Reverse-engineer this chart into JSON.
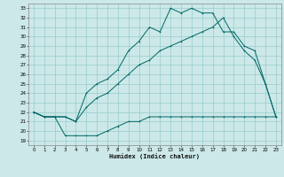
{
  "xlabel": "Humidex (Indice chaleur)",
  "xlim": [
    -0.5,
    23.5
  ],
  "ylim": [
    18.5,
    33.5
  ],
  "yticks": [
    19,
    20,
    21,
    22,
    23,
    24,
    25,
    26,
    27,
    28,
    29,
    30,
    31,
    32,
    33
  ],
  "xticks": [
    0,
    1,
    2,
    3,
    4,
    5,
    6,
    7,
    8,
    9,
    10,
    11,
    12,
    13,
    14,
    15,
    16,
    17,
    18,
    19,
    20,
    21,
    22,
    23
  ],
  "bg_color": "#cce8e8",
  "grid_color": "#99cccc",
  "line_color": "#006666",
  "line1_x": [
    0,
    1,
    2,
    3,
    4,
    5,
    6,
    7,
    8,
    9,
    10,
    11,
    12,
    13,
    14,
    15,
    16,
    17,
    18,
    19,
    20,
    21,
    22,
    23
  ],
  "line1_y": [
    22.0,
    21.5,
    21.5,
    19.5,
    19.5,
    19.5,
    19.5,
    20.0,
    20.5,
    21.0,
    21.0,
    21.5,
    21.5,
    21.5,
    21.5,
    21.5,
    21.5,
    21.5,
    21.5,
    21.5,
    21.5,
    21.5,
    21.5,
    21.5
  ],
  "line2_x": [
    0,
    1,
    2,
    3,
    4,
    5,
    6,
    7,
    8,
    9,
    10,
    11,
    12,
    13,
    14,
    15,
    16,
    17,
    18,
    19,
    20,
    21,
    22,
    23
  ],
  "line2_y": [
    22.0,
    21.5,
    21.5,
    21.5,
    21.0,
    24.0,
    25.0,
    25.5,
    26.5,
    28.5,
    29.5,
    31.0,
    30.5,
    33.0,
    32.5,
    33.0,
    32.5,
    32.5,
    30.5,
    30.5,
    29.0,
    28.5,
    25.0,
    21.5
  ],
  "line3_x": [
    0,
    1,
    2,
    3,
    4,
    5,
    6,
    7,
    8,
    9,
    10,
    11,
    12,
    13,
    14,
    15,
    16,
    17,
    18,
    19,
    20,
    21,
    22,
    23
  ],
  "line3_y": [
    22.0,
    21.5,
    21.5,
    21.5,
    21.0,
    22.5,
    23.5,
    24.0,
    25.0,
    26.0,
    27.0,
    27.5,
    28.5,
    29.0,
    29.5,
    30.0,
    30.5,
    31.0,
    32.0,
    30.0,
    28.5,
    27.5,
    25.0,
    21.5
  ]
}
